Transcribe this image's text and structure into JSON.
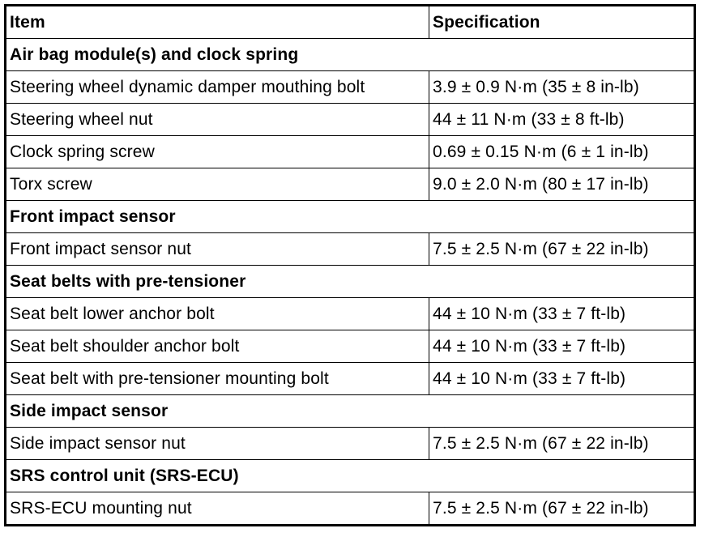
{
  "table": {
    "headers": [
      "Item",
      "Specification"
    ],
    "rows": [
      {
        "type": "section",
        "item": "Air bag module(s) and clock spring"
      },
      {
        "type": "row",
        "item": "Steering wheel dynamic damper mouthing bolt",
        "spec": "3.9 ± 0.9 N·m (35 ± 8 in-lb)"
      },
      {
        "type": "row",
        "item": "Steering wheel nut",
        "spec": "44 ± 11 N·m (33 ± 8 ft-lb)"
      },
      {
        "type": "row",
        "item": "Clock spring screw",
        "spec": "0.69 ± 0.15 N·m (6 ± 1 in-lb)"
      },
      {
        "type": "row",
        "item": "Torx screw",
        "spec": "9.0 ± 2.0 N·m (80 ± 17 in-lb)"
      },
      {
        "type": "section",
        "item": "Front impact sensor"
      },
      {
        "type": "row",
        "item": "Front impact sensor nut",
        "spec": "7.5 ± 2.5 N·m (67 ± 22 in-lb)"
      },
      {
        "type": "section",
        "item": "Seat belts with pre-tensioner"
      },
      {
        "type": "row",
        "item": "Seat belt lower anchor bolt",
        "spec": "44 ± 10 N·m (33 ± 7 ft-lb)"
      },
      {
        "type": "row",
        "item": "Seat belt shoulder anchor bolt",
        "spec": "44 ± 10 N·m (33 ± 7 ft-lb)"
      },
      {
        "type": "row",
        "item": "Seat belt with pre-tensioner mounting bolt",
        "spec": "44 ± 10 N·m (33 ± 7 ft-lb)"
      },
      {
        "type": "section",
        "item": "Side impact sensor"
      },
      {
        "type": "row",
        "item": "Side impact sensor nut",
        "spec": "7.5 ± 2.5 N·m (67 ± 22 in-lb)"
      },
      {
        "type": "section",
        "item": "SRS control unit (SRS-ECU)"
      },
      {
        "type": "row",
        "item": "SRS-ECU mounting nut",
        "spec": "7.5 ± 2.5 N·m (67 ± 22 in-lb)"
      }
    ]
  }
}
